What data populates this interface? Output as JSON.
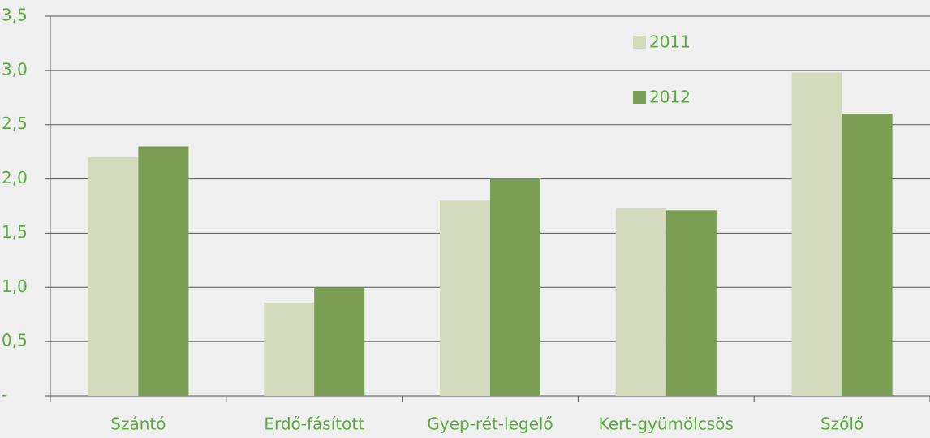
{
  "chart_data": {
    "type": "bar",
    "categories": [
      "Szántó",
      "Erdő-fásított",
      "Gyep-rét-legelő",
      "Kert-gyümölcsös",
      "Szőlő"
    ],
    "series": [
      {
        "name": "2011",
        "color": "#d4dbbc",
        "values": [
          2.2,
          0.86,
          1.8,
          1.73,
          2.98
        ]
      },
      {
        "name": "2012",
        "color": "#7a9e54",
        "values": [
          2.3,
          1.0,
          2.0,
          1.71,
          2.6
        ]
      }
    ],
    "ylim": [
      0,
      3.5
    ],
    "yticks": [
      {
        "value": 0,
        "label": "-"
      },
      {
        "value": 0.5,
        "label": "0,5"
      },
      {
        "value": 1,
        "label": "1,0"
      },
      {
        "value": 1.5,
        "label": "1,5"
      },
      {
        "value": 2,
        "label": "2,0"
      },
      {
        "value": 2.5,
        "label": "2,5"
      },
      {
        "value": 3,
        "label": "3,0"
      },
      {
        "value": 3.5,
        "label": "3,5"
      }
    ],
    "grid": true
  }
}
